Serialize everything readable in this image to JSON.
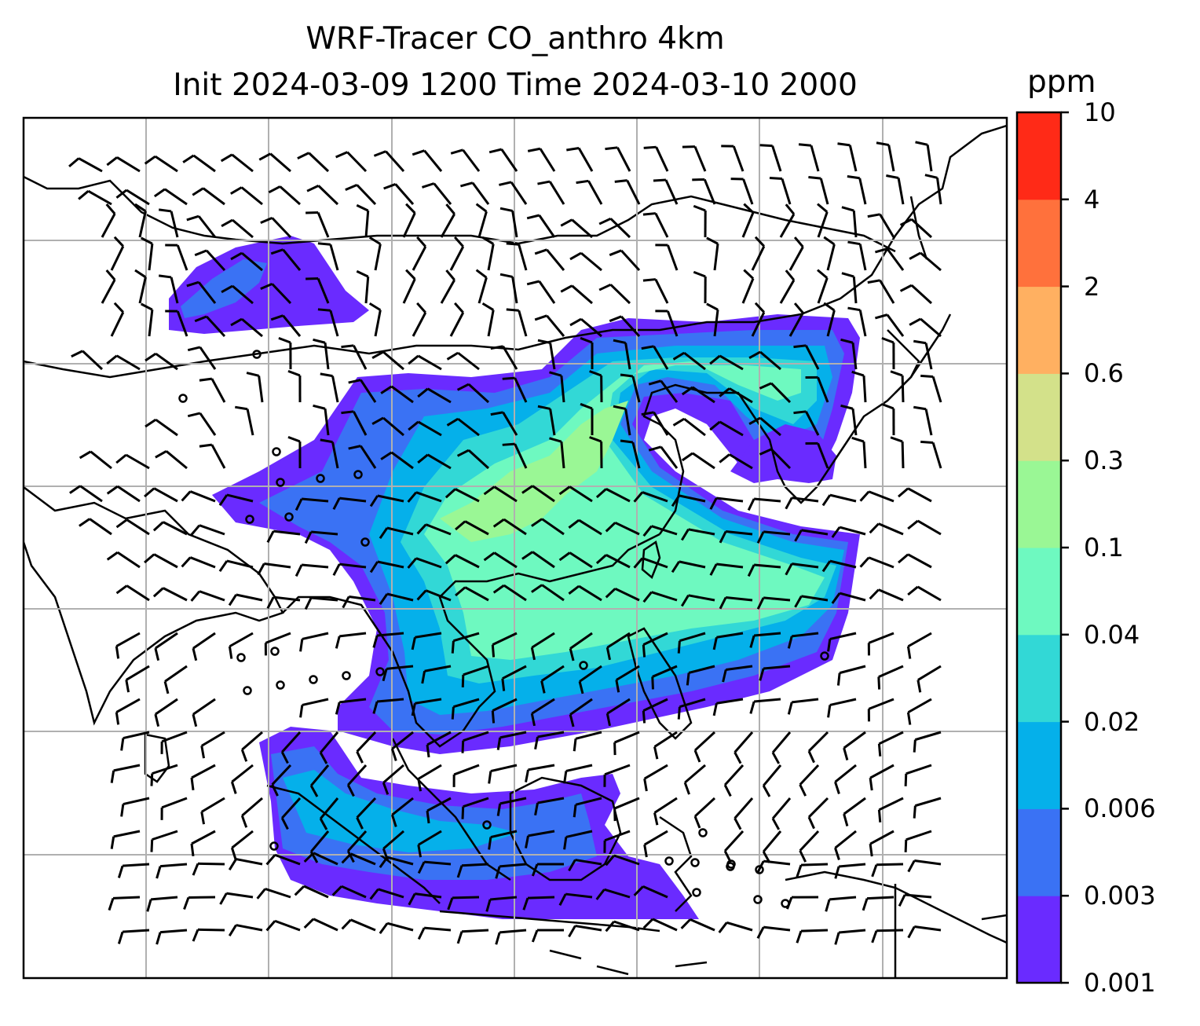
{
  "title": {
    "line1": "WRF-Tracer CO_anthro 4km",
    "line2": "Init 2024-03-09 1200 Time 2024-03-10 2000"
  },
  "colorbar": {
    "unit": "ppm",
    "ticks": [
      "0.001",
      "0.003",
      "0.006",
      "0.02",
      "0.04",
      "0.1",
      "0.3",
      "0.6",
      "2",
      "4",
      "10"
    ],
    "colors": [
      "#6a2bff",
      "#3a72f4",
      "#05b0ea",
      "#32d8d6",
      "#6ef9c0",
      "#9af795",
      "#d3e18a",
      "#ffb061",
      "#ff713c",
      "#ff2a17"
    ]
  },
  "map": {
    "coastline_color": "#000000",
    "gridline_color": "#b0b0b0",
    "calm_marker": "circle",
    "wind_barb_color": "#000000"
  }
}
